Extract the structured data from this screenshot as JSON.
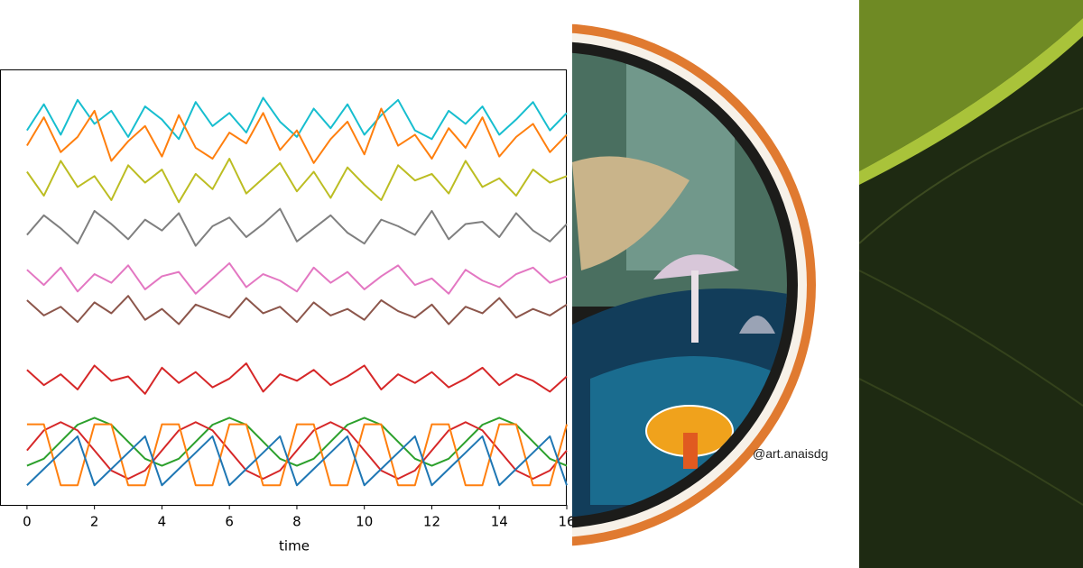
{
  "chart_data": {
    "type": "line",
    "x_label": "time",
    "x": [
      0,
      0.5,
      1,
      1.5,
      2,
      2.5,
      3,
      3.5,
      4,
      4.5,
      5,
      5.5,
      6,
      6.5,
      7,
      7.5,
      8,
      8.5,
      9,
      9.5,
      10,
      10.5,
      11,
      11.5,
      12,
      12.5,
      13,
      13.5,
      14,
      14.5,
      15,
      15.5,
      16
    ],
    "xlim": [
      -0.8,
      16
    ],
    "xticks": [
      0,
      2,
      4,
      6,
      8,
      10,
      12,
      14,
      16
    ],
    "ylim": [
      0,
      20
    ],
    "series": [
      {
        "color": "#17becf",
        "values": [
          17.2,
          18.4,
          17.0,
          18.6,
          17.5,
          18.1,
          16.9,
          18.3,
          17.7,
          16.8,
          18.5,
          17.4,
          18.0,
          17.1,
          18.7,
          17.6,
          16.9,
          18.2,
          17.3,
          18.4,
          17.0,
          17.9,
          18.6,
          17.2,
          16.8,
          18.1,
          17.5,
          18.3,
          17.0,
          17.7,
          18.5,
          17.2,
          18.0
        ]
      },
      {
        "color": "#ff7f0e",
        "values": [
          16.5,
          17.8,
          16.2,
          16.9,
          18.1,
          15.8,
          16.7,
          17.4,
          16.0,
          17.9,
          16.4,
          15.9,
          17.1,
          16.6,
          18.0,
          16.3,
          17.2,
          15.7,
          16.8,
          17.6,
          16.1,
          18.2,
          16.5,
          17.0,
          15.9,
          17.3,
          16.4,
          17.8,
          16.0,
          16.9,
          17.5,
          16.2,
          17.0
        ]
      },
      {
        "color": "#bcbd22",
        "values": [
          15.3,
          14.2,
          15.8,
          14.6,
          15.1,
          14.0,
          15.6,
          14.8,
          15.4,
          13.9,
          15.2,
          14.5,
          15.9,
          14.3,
          15.0,
          15.7,
          14.4,
          15.3,
          14.1,
          15.5,
          14.7,
          14.0,
          15.6,
          14.9,
          15.2,
          14.3,
          15.8,
          14.6,
          15.0,
          14.2,
          15.4,
          14.8,
          15.1
        ]
      },
      {
        "color": "#7f7f7f",
        "values": [
          12.4,
          13.3,
          12.7,
          12.0,
          13.5,
          12.9,
          12.2,
          13.1,
          12.6,
          13.4,
          11.9,
          12.8,
          13.2,
          12.3,
          12.9,
          13.6,
          12.1,
          12.7,
          13.3,
          12.5,
          12.0,
          13.1,
          12.8,
          12.4,
          13.5,
          12.2,
          12.9,
          13.0,
          12.3,
          13.4,
          12.6,
          12.1,
          12.9
        ]
      },
      {
        "color": "#e377c2",
        "values": [
          10.8,
          10.1,
          10.9,
          9.8,
          10.6,
          10.2,
          11.0,
          9.9,
          10.5,
          10.7,
          9.7,
          10.4,
          11.1,
          10.0,
          10.6,
          10.3,
          9.8,
          10.9,
          10.2,
          10.7,
          9.9,
          10.5,
          11.0,
          10.1,
          10.4,
          9.7,
          10.8,
          10.3,
          10.0,
          10.6,
          10.9,
          10.2,
          10.5
        ]
      },
      {
        "color": "#8c564b",
        "values": [
          9.4,
          8.7,
          9.1,
          8.4,
          9.3,
          8.8,
          9.6,
          8.5,
          9.0,
          8.3,
          9.2,
          8.9,
          8.6,
          9.5,
          8.8,
          9.1,
          8.4,
          9.3,
          8.7,
          9.0,
          8.5,
          9.4,
          8.9,
          8.6,
          9.2,
          8.3,
          9.1,
          8.8,
          9.5,
          8.6,
          9.0,
          8.7,
          9.2
        ]
      },
      {
        "color": "#d62728",
        "values": [
          6.2,
          5.5,
          6.0,
          5.3,
          6.4,
          5.7,
          5.9,
          5.1,
          6.3,
          5.6,
          6.1,
          5.4,
          5.8,
          6.5,
          5.2,
          6.0,
          5.7,
          6.2,
          5.5,
          5.9,
          6.4,
          5.3,
          6.0,
          5.6,
          6.1,
          5.4,
          5.8,
          6.3,
          5.5,
          6.0,
          5.7,
          5.2,
          5.9
        ]
      },
      {
        "color": "#2ca02c",
        "values": [
          1.8,
          2.12,
          2.9,
          3.68,
          4.0,
          3.68,
          2.9,
          2.12,
          1.8,
          2.12,
          2.9,
          3.68,
          4.0,
          3.68,
          2.9,
          2.12,
          1.8,
          2.12,
          2.9,
          3.68,
          4.0,
          3.68,
          2.9,
          2.12,
          1.8,
          2.12,
          2.9,
          3.68,
          4.0,
          3.68,
          2.9,
          2.12,
          1.8
        ]
      },
      {
        "color": "#d62728",
        "values": [
          2.5,
          3.42,
          3.8,
          3.42,
          2.5,
          1.58,
          1.2,
          1.58,
          2.5,
          3.42,
          3.8,
          3.42,
          2.5,
          1.58,
          1.2,
          1.58,
          2.5,
          3.42,
          3.8,
          3.42,
          2.5,
          1.58,
          1.2,
          1.58,
          2.5,
          3.42,
          3.8,
          3.42,
          2.5,
          1.58,
          1.2,
          1.58,
          2.5
        ]
      },
      {
        "color": "#ff7f0e",
        "values": [
          3.7,
          3.7,
          0.9,
          0.9,
          3.7,
          3.7,
          0.9,
          0.9,
          3.7,
          3.7,
          0.9,
          0.9,
          3.7,
          3.7,
          0.9,
          0.9,
          3.7,
          3.7,
          0.9,
          0.9,
          3.7,
          3.7,
          0.9,
          0.9,
          3.7,
          3.7,
          0.9,
          0.9,
          3.7,
          3.7,
          0.9,
          0.9,
          3.7
        ]
      },
      {
        "color": "#1f77b4",
        "values": [
          0.9,
          1.65,
          2.4,
          3.15,
          0.9,
          1.65,
          2.4,
          3.15,
          0.9,
          1.65,
          2.4,
          3.15,
          0.9,
          1.65,
          2.4,
          3.15,
          0.9,
          1.65,
          2.4,
          3.15,
          0.9,
          1.65,
          2.4,
          3.15,
          0.9,
          1.65,
          2.4,
          3.15,
          0.9,
          1.65,
          2.4,
          3.15,
          0.9
        ]
      }
    ]
  },
  "art_credit": "@art.anaisdg"
}
